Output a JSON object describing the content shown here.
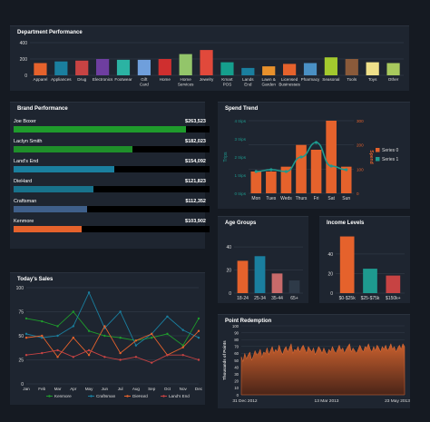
{
  "colors": {
    "bg": "#151a22",
    "panel": "#1e2530",
    "orange": "#e5622c",
    "teal": "#1e9a8f",
    "green": "#1f9b2c",
    "blue": "#1a7f9f"
  },
  "department": {
    "title": "Department Performance",
    "chart_data": {
      "type": "bar",
      "categories": [
        "Apparel",
        "Appliances",
        "Drug",
        "Electronics",
        "Footwear",
        "Gift Card",
        "Home",
        "Home Services",
        "Jewelry",
        "Kmart POS",
        "Lands End",
        "Lawn & Garden",
        "Licensed Businesses",
        "Pharmacy",
        "Seasonal",
        "Tools",
        "Toys",
        "Other"
      ],
      "tick_labels": [
        [
          "Apparel"
        ],
        [
          "Appliances"
        ],
        [
          "Drug"
        ],
        [
          "Electronics"
        ],
        [
          "Footwear"
        ],
        [
          "Gift",
          "Card"
        ],
        [
          "Home"
        ],
        [
          "Home",
          "Services"
        ],
        [
          "Jewelry"
        ],
        [
          "Kmart",
          "POS"
        ],
        [
          "Lands",
          "End"
        ],
        [
          "Lawn &",
          "Garden"
        ],
        [
          "Licensed",
          "Businesses"
        ],
        [
          "Pharmacy"
        ],
        [
          "Seasonal"
        ],
        [
          "Tools"
        ],
        [
          "Toys"
        ],
        [
          "Other"
        ]
      ],
      "values": [
        150,
        170,
        180,
        200,
        190,
        190,
        200,
        260,
        310,
        160,
        90,
        110,
        140,
        150,
        220,
        200,
        160,
        150
      ],
      "colors": [
        "#e5622c",
        "#1a7f9f",
        "#c74343",
        "#6e3ea0",
        "#2bb3a3",
        "#6f9fdc",
        "#cf2f2f",
        "#93c56a",
        "#e1493b",
        "#159f8d",
        "#1a7f9f",
        "#e8912c",
        "#e5622c",
        "#4a90c4",
        "#a3c92e",
        "#8a5a3a",
        "#efe08a",
        "#a8c95d"
      ],
      "yticks": [
        0,
        200,
        400
      ],
      "ylim": [
        0,
        400
      ]
    }
  },
  "brand": {
    "title": "Brand Performance",
    "items": [
      {
        "name": "Joe Boxer",
        "value": "$263,523",
        "amount": 263523,
        "color": "#1f9b2c"
      },
      {
        "name": "Laclyn Smith",
        "value": "$182,023",
        "amount": 182023,
        "color": "#1f8f2a"
      },
      {
        "name": "Land's End",
        "value": "$154,092",
        "amount": 154092,
        "color": "#1a7f9f"
      },
      {
        "name": "DieHard",
        "value": "$121,823",
        "amount": 121823,
        "color": "#18728c"
      },
      {
        "name": "Craftsman",
        "value": "$112,352",
        "amount": 112352,
        "color": "#3f5f8a"
      },
      {
        "name": "Kenmore",
        "value": "$103,902",
        "amount": 103902,
        "color": "#e5622c"
      }
    ],
    "max_amount": 300000
  },
  "spend": {
    "title": "Spend Trend",
    "chart_data": {
      "type": "bar+line",
      "categories": [
        "Mon",
        "Tues",
        "Weds",
        "Thurs",
        "Fri",
        "Sat",
        "Sun"
      ],
      "series": [
        {
          "name": "Series 0",
          "type": "bar",
          "values": [
            90,
            90,
            110,
            200,
            180,
            300,
            110
          ],
          "color": "#e5622c"
        },
        {
          "name": "Series 1",
          "type": "line",
          "values": [
            1.2,
            1.3,
            1.2,
            2.0,
            2.8,
            1.5,
            1.3
          ],
          "color": "#1e9a8f"
        }
      ],
      "y_left": {
        "label": "Trips",
        "ticks": [
          "0 trips",
          "1 trips",
          "2 trips",
          "3 trips",
          "4 trips"
        ],
        "lim": [
          0,
          4
        ]
      },
      "y_right": {
        "label": "Spend",
        "ticks": [
          "0",
          "100",
          "200",
          "300"
        ],
        "lim": [
          0,
          300
        ]
      }
    }
  },
  "age": {
    "title": "Age Groups",
    "chart_data": {
      "type": "bar",
      "categories": [
        "18-24",
        "25-34",
        "35-44",
        "65+"
      ],
      "values": [
        28,
        32,
        17,
        11
      ],
      "colors": [
        "#e5622c",
        "#1a7f9f",
        "#c86a6a",
        "#2e3a48"
      ],
      "yticks": [
        0,
        20,
        40
      ],
      "ylim": [
        0,
        55
      ]
    }
  },
  "income": {
    "title": "Income Levels",
    "chart_data": {
      "type": "bar",
      "categories": [
        "$0-$25k",
        "$25-$75k",
        "$150k+"
      ],
      "values": [
        58,
        25,
        18
      ],
      "colors": [
        "#e5622c",
        "#1e9a8f",
        "#c74343"
      ],
      "yticks": [
        0,
        20,
        40
      ],
      "ylim": [
        0,
        65
      ]
    }
  },
  "sales": {
    "title": "Today's Sales",
    "chart_data": {
      "type": "line",
      "categories": [
        "Jan",
        "Feb",
        "Mar",
        "Apr",
        "May",
        "Jun",
        "Jul",
        "Aug",
        "Sep",
        "Oct",
        "Nov",
        "Dec"
      ],
      "series": [
        {
          "name": "Kenmore",
          "values": [
            68,
            65,
            60,
            75,
            55,
            50,
            48,
            45,
            48,
            52,
            40,
            68
          ],
          "color": "#1f9b2c"
        },
        {
          "name": "Craftsman",
          "values": [
            52,
            48,
            50,
            60,
            95,
            58,
            75,
            40,
            52,
            70,
            56,
            48
          ],
          "color": "#1a7f9f"
        },
        {
          "name": "DieHard",
          "values": [
            48,
            50,
            28,
            48,
            30,
            60,
            32,
            45,
            52,
            30,
            38,
            55
          ],
          "color": "#e5622c"
        },
        {
          "name": "Land's End",
          "values": [
            30,
            32,
            35,
            28,
            35,
            28,
            25,
            28,
            22,
            30,
            30,
            25
          ],
          "color": "#c74343"
        }
      ],
      "yticks": [
        0,
        25,
        50,
        75,
        100
      ],
      "ylim": [
        0,
        100
      ]
    }
  },
  "point": {
    "title": "Point Redemption",
    "chart_data": {
      "type": "area",
      "x_ticks": [
        "31 Dec 2012",
        "13 Mar 2013",
        "23 May 2013"
      ],
      "ylabel": "Thousands of Points",
      "yticks": [
        0,
        10,
        20,
        30,
        40,
        50,
        60,
        70,
        80,
        90,
        100
      ],
      "ylim": [
        0,
        100
      ],
      "values": [
        55,
        48,
        60,
        52,
        58,
        62,
        50,
        56,
        64,
        58,
        60,
        66,
        54,
        62,
        60,
        68,
        58,
        64,
        70,
        60,
        66,
        62,
        72,
        64,
        58,
        66,
        70,
        62,
        68,
        74,
        60,
        66,
        64,
        70,
        62,
        68,
        72,
        66,
        60,
        70,
        66,
        62,
        68,
        58,
        64,
        70,
        66,
        60,
        68,
        62,
        58,
        66,
        62,
        70,
        64,
        60,
        66,
        72,
        64,
        68,
        60,
        66,
        70,
        74,
        62,
        68,
        64,
        60,
        66,
        72,
        66,
        62,
        70,
        68,
        74,
        66,
        62,
        70,
        64,
        72,
        68,
        62,
        70,
        66,
        72,
        64,
        68,
        74,
        66,
        70,
        62,
        68,
        72,
        66,
        74,
        70
      ]
    }
  }
}
